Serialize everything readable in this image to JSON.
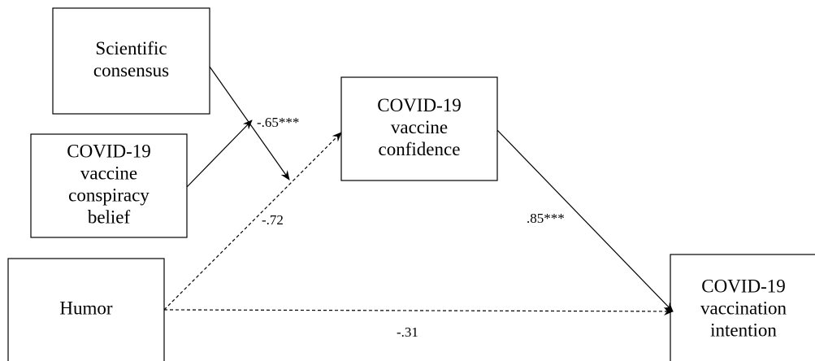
{
  "nodes": [
    {
      "lines": [
        "Scientific",
        "consensus"
      ]
    },
    {
      "lines": [
        "COVID-19",
        "vaccine",
        "conspiracy",
        "belief"
      ]
    },
    {
      "lines": [
        "COVID-19",
        "vaccine",
        "confidence"
      ]
    },
    {
      "lines": [
        "Humor"
      ]
    },
    {
      "lines": [
        "COVID-19",
        "vaccination",
        "intention"
      ]
    }
  ],
  "edges": [
    {
      "label": "-.65***"
    },
    {
      "label": "-.72"
    },
    {
      "label": ".85***"
    },
    {
      "label": "-.31"
    }
  ]
}
